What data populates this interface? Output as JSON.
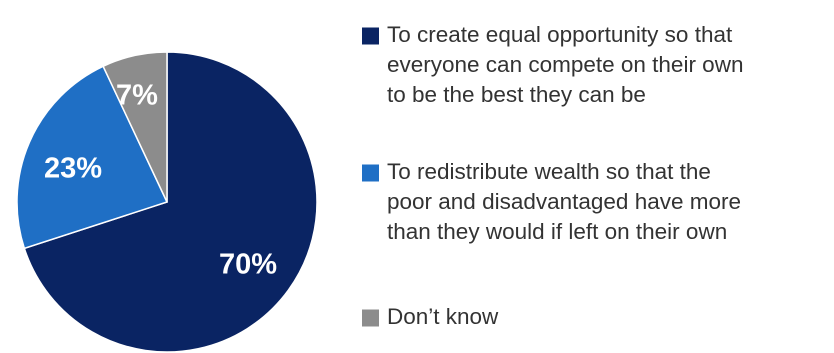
{
  "chart_data": {
    "type": "pie",
    "legend_position": "right",
    "start_angle": "12 o'clock",
    "direction": "clockwise",
    "slices": [
      {
        "label_lines": [
          "To create equal opportunity so that",
          "everyone can compete on their own",
          "to be the best they can be"
        ],
        "value": 70,
        "value_label": "70%",
        "color": "#0a2463",
        "label_color": "#ffffff"
      },
      {
        "label_lines": [
          "To redistribute wealth so that the",
          "poor and disadvantaged have more",
          "than they would if left on their own"
        ],
        "value": 23,
        "value_label": "23%",
        "color": "#1f6fc5",
        "label_color": "#ffffff"
      },
      {
        "label_lines": [
          "Don’t know"
        ],
        "value": 7,
        "value_label": "7%",
        "color": "#8c8c8c",
        "label_color": "#ffffff"
      }
    ],
    "legend_text_color": "#333333"
  }
}
